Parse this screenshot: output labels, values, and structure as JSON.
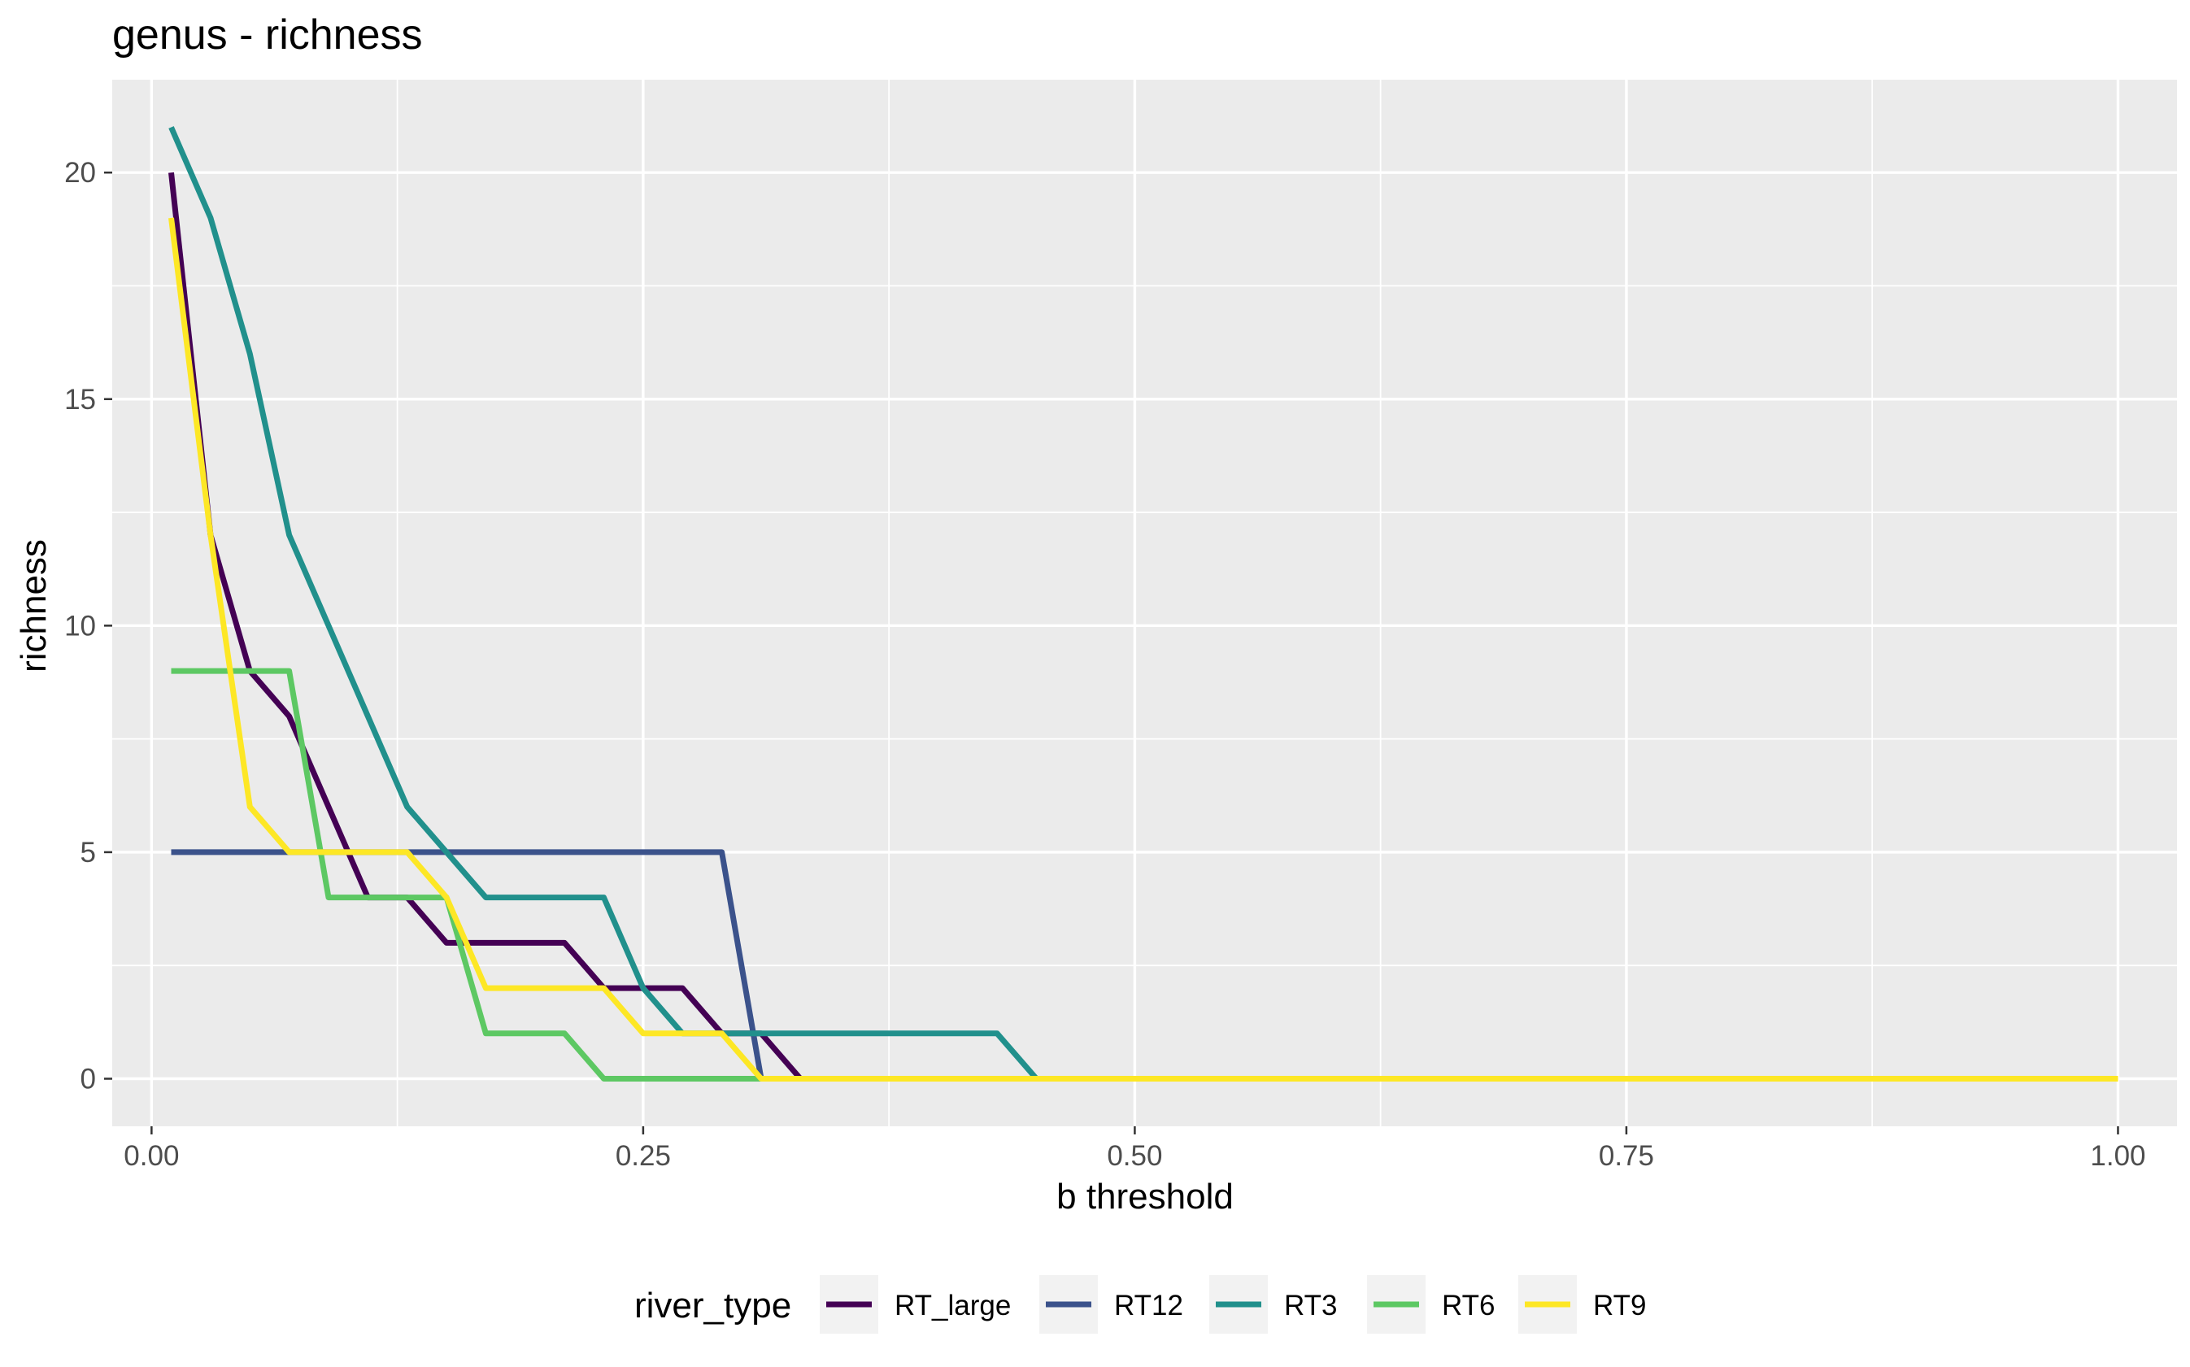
{
  "chart_data": {
    "type": "line",
    "title": "genus - richness",
    "xlabel": "b threshold",
    "ylabel": "richness",
    "xlim": [
      -0.02,
      1.03
    ],
    "ylim": [
      -1.05,
      22.05
    ],
    "x_ticks": [
      "0.00",
      "0.25",
      "0.50",
      "0.75",
      "1.00"
    ],
    "x_tick_values": [
      0.0,
      0.25,
      0.5,
      0.75,
      1.0
    ],
    "y_ticks": [
      "0",
      "5",
      "10",
      "15",
      "20"
    ],
    "y_tick_values": [
      0,
      5,
      10,
      15,
      20
    ],
    "grid": true,
    "panel_background": "#ebebeb",
    "legend": {
      "title": "river_type",
      "position": "bottom"
    },
    "series": [
      {
        "name": "RT_large",
        "color": "#440154",
        "points": [
          [
            0.01,
            20
          ],
          [
            0.03,
            12
          ],
          [
            0.05,
            9
          ],
          [
            0.07,
            8
          ],
          [
            0.09,
            6
          ],
          [
            0.11,
            4
          ],
          [
            0.13,
            4
          ],
          [
            0.15,
            3
          ],
          [
            0.17,
            3
          ],
          [
            0.19,
            3
          ],
          [
            0.21,
            3
          ],
          [
            0.23,
            2
          ],
          [
            0.25,
            2
          ],
          [
            0.27,
            2
          ],
          [
            0.29,
            1
          ],
          [
            0.31,
            1
          ],
          [
            0.33,
            0
          ],
          [
            0.35,
            0
          ],
          [
            1.0,
            0
          ]
        ]
      },
      {
        "name": "RT12",
        "color": "#3b528b",
        "points": [
          [
            0.01,
            5
          ],
          [
            0.03,
            5
          ],
          [
            0.05,
            5
          ],
          [
            0.07,
            5
          ],
          [
            0.09,
            5
          ],
          [
            0.11,
            5
          ],
          [
            0.13,
            5
          ],
          [
            0.15,
            5
          ],
          [
            0.17,
            5
          ],
          [
            0.19,
            5
          ],
          [
            0.21,
            5
          ],
          [
            0.23,
            5
          ],
          [
            0.25,
            5
          ],
          [
            0.27,
            5
          ],
          [
            0.29,
            5
          ],
          [
            0.31,
            0
          ],
          [
            0.33,
            0
          ],
          [
            1.0,
            0
          ]
        ]
      },
      {
        "name": "RT3",
        "color": "#21908c",
        "points": [
          [
            0.01,
            21
          ],
          [
            0.03,
            19
          ],
          [
            0.05,
            16
          ],
          [
            0.07,
            12
          ],
          [
            0.09,
            10
          ],
          [
            0.11,
            8
          ],
          [
            0.13,
            6
          ],
          [
            0.15,
            5
          ],
          [
            0.17,
            4
          ],
          [
            0.19,
            4
          ],
          [
            0.21,
            4
          ],
          [
            0.23,
            4
          ],
          [
            0.25,
            2
          ],
          [
            0.27,
            1
          ],
          [
            0.29,
            1
          ],
          [
            0.31,
            1
          ],
          [
            0.33,
            1
          ],
          [
            0.35,
            1
          ],
          [
            0.37,
            1
          ],
          [
            0.39,
            1
          ],
          [
            0.41,
            1
          ],
          [
            0.43,
            1
          ],
          [
            0.45,
            0
          ],
          [
            0.47,
            0
          ],
          [
            1.0,
            0
          ]
        ]
      },
      {
        "name": "RT6",
        "color": "#5dc863",
        "points": [
          [
            0.01,
            9
          ],
          [
            0.03,
            9
          ],
          [
            0.05,
            9
          ],
          [
            0.07,
            9
          ],
          [
            0.09,
            4
          ],
          [
            0.11,
            4
          ],
          [
            0.13,
            4
          ],
          [
            0.15,
            4
          ],
          [
            0.17,
            1
          ],
          [
            0.19,
            1
          ],
          [
            0.21,
            1
          ],
          [
            0.23,
            0
          ],
          [
            0.25,
            0
          ],
          [
            1.0,
            0
          ]
        ]
      },
      {
        "name": "RT9",
        "color": "#fde725",
        "points": [
          [
            0.01,
            19
          ],
          [
            0.03,
            12
          ],
          [
            0.05,
            6
          ],
          [
            0.07,
            5
          ],
          [
            0.09,
            5
          ],
          [
            0.11,
            5
          ],
          [
            0.13,
            5
          ],
          [
            0.15,
            4
          ],
          [
            0.17,
            2
          ],
          [
            0.19,
            2
          ],
          [
            0.21,
            2
          ],
          [
            0.23,
            2
          ],
          [
            0.25,
            1
          ],
          [
            0.27,
            1
          ],
          [
            0.29,
            1
          ],
          [
            0.31,
            0
          ],
          [
            0.33,
            0
          ],
          [
            1.0,
            0
          ]
        ]
      }
    ]
  }
}
